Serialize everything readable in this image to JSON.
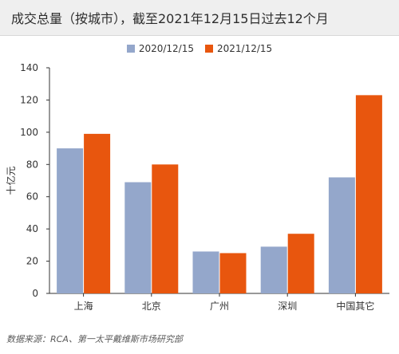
{
  "title": "成交总量（按城市），截至2021年12月15日过去12个月",
  "source": "数据来源：RCA、第一太平戴维斯市场研究部",
  "colors": {
    "series1": "#94a7cb",
    "series2": "#e8560e",
    "axis": "#333333"
  },
  "chart_data": {
    "type": "bar",
    "categories": [
      "上海",
      "北京",
      "广州",
      "深圳",
      "中国其它"
    ],
    "series": [
      {
        "name": "2020/12/15",
        "values": [
          90,
          69,
          26,
          29,
          72
        ]
      },
      {
        "name": "2021/12/15",
        "values": [
          99,
          80,
          25,
          37,
          123
        ]
      }
    ],
    "ylabel": "十亿元",
    "xlabel": "",
    "ylim": [
      0,
      140
    ],
    "yticks": [
      0,
      20,
      40,
      60,
      80,
      100,
      120,
      140
    ],
    "grid": false,
    "legend": "top-center"
  }
}
